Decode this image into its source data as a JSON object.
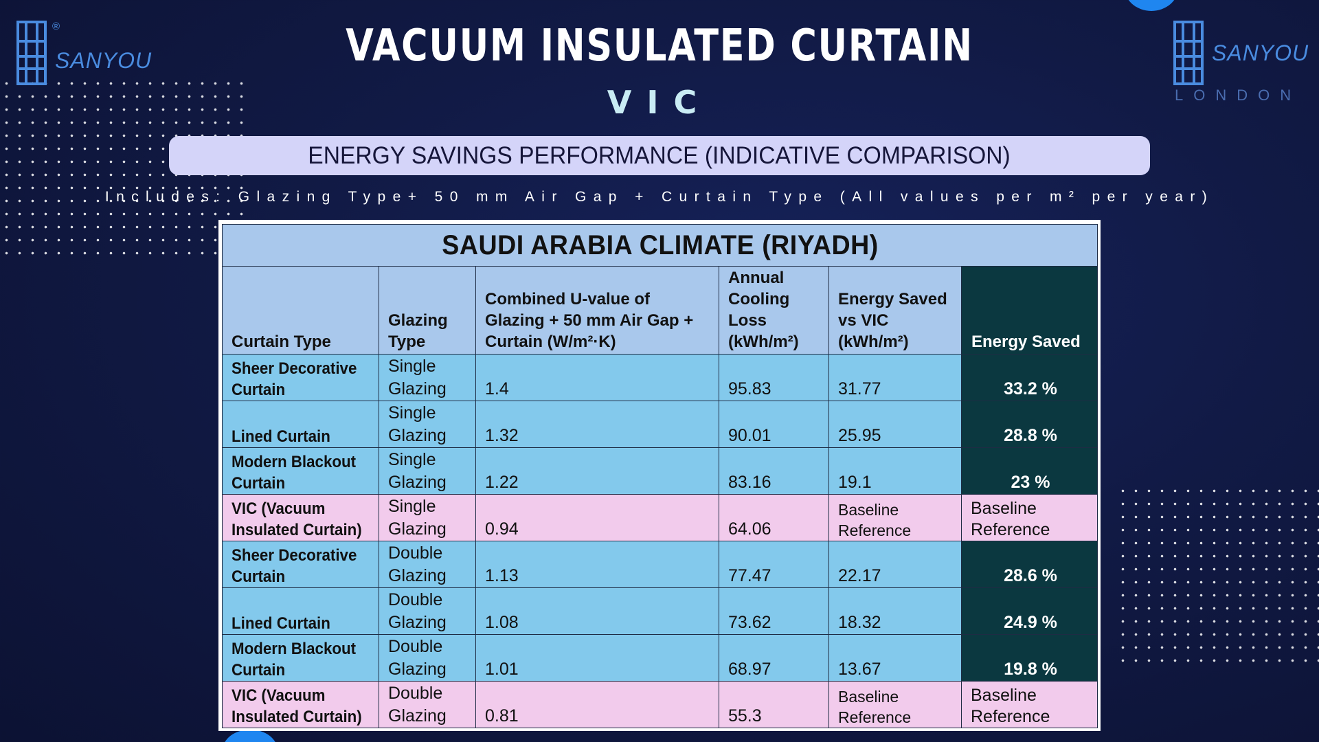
{
  "brand": {
    "name": "SANYOU",
    "registered": "®",
    "right_name": "SANYOU",
    "right_sub": "LONDON",
    "color": "#4a8ce0"
  },
  "header": {
    "title": "VACUUM INSULATED CURTAIN",
    "subtitle": "VIC",
    "banner": "ENERGY SAVINGS PERFORMANCE (INDICATIVE COMPARISON)",
    "note": "Includes: Glazing Type+ 50 mm Air Gap + Curtain Type (All values per m² per year)"
  },
  "colors": {
    "background": "#111a45",
    "banner": "#d4d4f9",
    "table_header": "#a9c8ec",
    "row_blue": "#83c9ec",
    "row_pink": "#f2cbec",
    "energy_saved": "#0b3840"
  },
  "table": {
    "title": "SAUDI ARABIA CLIMATE (RIYADH)",
    "columns": [
      "Curtain Type",
      "Glazing Type",
      "Combined U-value of Glazing + 50 mm Air Gap + Curtain (W/m²·K)",
      "Annual Cooling Loss (kWh/m²)",
      "Energy Saved vs VIC (kWh/m²)",
      "Energy Saved"
    ],
    "rows": [
      {
        "curtain": "Sheer Decorative Curtain",
        "glazing": "Single Glazing",
        "u_value": "1.4",
        "cooling_loss": "95.83",
        "saved_vs_vic": "31.77",
        "energy_saved": "33.2 %",
        "style": "blue"
      },
      {
        "curtain": "Lined Curtain",
        "glazing": "Single Glazing",
        "u_value": "1.32",
        "cooling_loss": "90.01",
        "saved_vs_vic": "25.95",
        "energy_saved": "28.8 %",
        "style": "blue"
      },
      {
        "curtain": "Modern Blackout Curtain",
        "glazing": "Single Glazing",
        "u_value": "1.22",
        "cooling_loss": "83.16",
        "saved_vs_vic": "19.1",
        "energy_saved": "23 %",
        "style": "blue"
      },
      {
        "curtain": "VIC (Vacuum Insulated Curtain)",
        "glazing": "Single Glazing",
        "u_value": "0.94",
        "cooling_loss": "64.06",
        "saved_vs_vic": "Baseline Reference",
        "energy_saved": "Baseline Reference",
        "style": "pink"
      },
      {
        "curtain": "Sheer Decorative Curtain",
        "glazing": "Double Glazing",
        "u_value": "1.13",
        "cooling_loss": "77.47",
        "saved_vs_vic": "22.17",
        "energy_saved": "28.6 %",
        "style": "blue"
      },
      {
        "curtain": "Lined Curtain",
        "glazing": "Double Glazing",
        "u_value": "1.08",
        "cooling_loss": "73.62",
        "saved_vs_vic": "18.32",
        "energy_saved": "24.9 %",
        "style": "blue"
      },
      {
        "curtain": "Modern Blackout Curtain",
        "glazing": "Double Glazing",
        "u_value": "1.01",
        "cooling_loss": "68.97",
        "saved_vs_vic": "13.67",
        "energy_saved": "19.8 %",
        "style": "blue"
      },
      {
        "curtain": "VIC (Vacuum Insulated Curtain)",
        "glazing": "Double Glazing",
        "u_value": "0.81",
        "cooling_loss": "55.3",
        "saved_vs_vic": "Baseline Reference",
        "energy_saved": "Baseline Reference",
        "style": "pink"
      }
    ]
  }
}
